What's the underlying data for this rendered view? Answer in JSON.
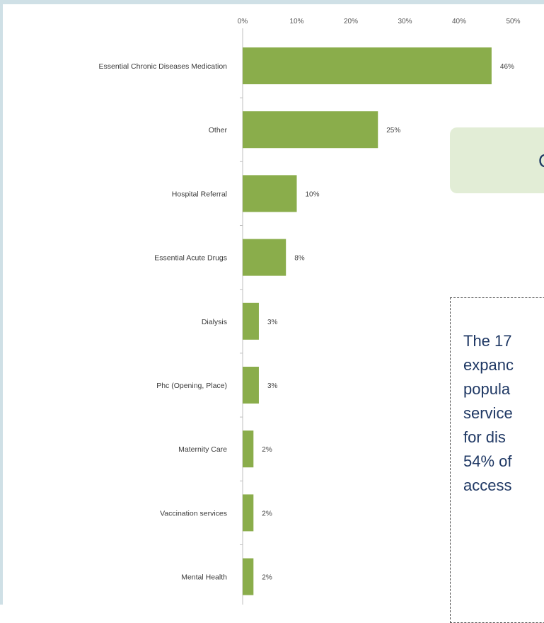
{
  "chart_data": {
    "type": "bar",
    "orientation": "horizontal",
    "categories": [
      "Essential Chronic Diseases Medication",
      "Other",
      "Hospital Referral",
      "Essential Acute Drugs",
      "Dialysis",
      "Phc (Opening, Place)",
      "Maternity Care",
      "Vaccination services",
      "Mental Health"
    ],
    "values": [
      46,
      25,
      10,
      8,
      3,
      3,
      2,
      2,
      2
    ],
    "value_labels": [
      "46%",
      "25%",
      "10%",
      "8%",
      "3%",
      "3%",
      "2%",
      "2%",
      "2%"
    ],
    "xticks": [
      "0%",
      "10%",
      "20%",
      "30%",
      "40%",
      "50%"
    ],
    "xlim": [
      0,
      50
    ],
    "x_axis_position": "top",
    "bar_color": "#8aad4b",
    "grid": false
  },
  "callout": {
    "text": "C"
  },
  "note": {
    "lines": [
      "The 17",
      "expanc",
      "popula",
      "service",
      "for dis",
      "54% of",
      "access"
    ]
  }
}
